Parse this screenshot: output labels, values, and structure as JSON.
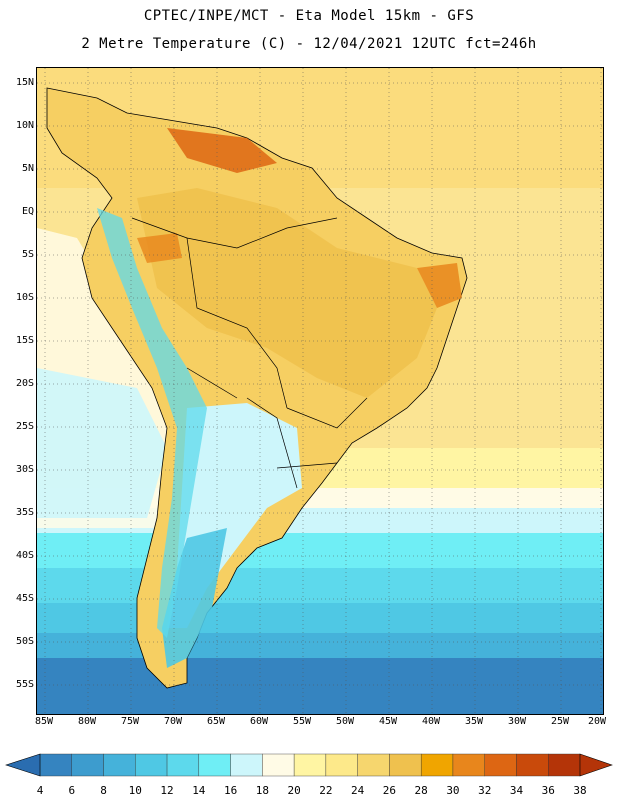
{
  "title_line1": "CPTEC/INPE/MCT -  Eta Model 15km - GFS",
  "title_line2": "2 Metre Temperature (C) - 12/04/2021 12UTC fct=246h",
  "lat_labels": [
    "15N",
    "10N",
    "5N",
    "EQ",
    "5S",
    "10S",
    "15S",
    "20S",
    "25S",
    "30S",
    "35S",
    "40S",
    "45S",
    "50S",
    "55S"
  ],
  "lon_labels": [
    "85W",
    "80W",
    "75W",
    "70W",
    "65W",
    "60W",
    "55W",
    "50W",
    "45W",
    "40W",
    "35W",
    "30W",
    "25W",
    "20W"
  ],
  "colorbar": {
    "ticks": [
      "4",
      "6",
      "8",
      "10",
      "12",
      "14",
      "16",
      "18",
      "20",
      "22",
      "24",
      "26",
      "28",
      "30",
      "32",
      "34",
      "36",
      "38"
    ],
    "colors": [
      "#2a6db0",
      "#3584c0",
      "#3d9cce",
      "#45b2da",
      "#4fc8e4",
      "#5dd9ec",
      "#6feef5",
      "#cdf6fb",
      "#fffbe6",
      "#fff5a3",
      "#fde98a",
      "#f6d66e",
      "#efc14e",
      "#f0a500",
      "#e8861c",
      "#dd6613",
      "#c94a0b",
      "#b43408"
    ]
  },
  "legend_title": "2 Metre Temperature (C)"
}
